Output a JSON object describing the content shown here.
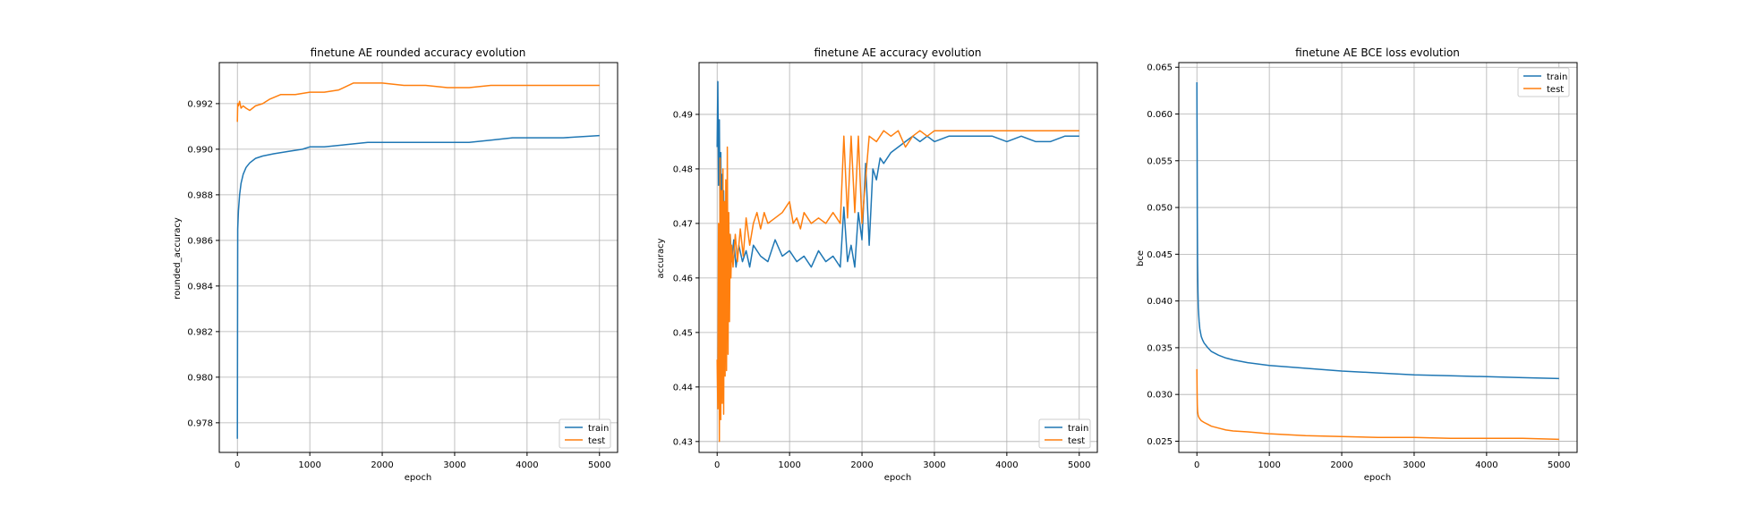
{
  "colors": {
    "train": "#1f77b4",
    "test": "#ff7f0e",
    "grid": "#b0b0b0",
    "axis": "#000000"
  },
  "chart_data": [
    {
      "type": "line",
      "title": "finetune AE rounded accuracy evolution",
      "xlabel": "epoch",
      "ylabel": "rounded_accuracy",
      "xlim": [
        -250,
        5250
      ],
      "ylim": [
        0.9767,
        0.9938
      ],
      "xticks": [
        0,
        1000,
        2000,
        3000,
        4000,
        5000
      ],
      "xtick_labels": [
        "0",
        "1000",
        "2000",
        "3000",
        "4000",
        "5000"
      ],
      "yticks": [
        0.978,
        0.98,
        0.982,
        0.984,
        0.986,
        0.988,
        0.99,
        0.992
      ],
      "ytick_labels": [
        "0.978",
        "0.980",
        "0.982",
        "0.984",
        "0.986",
        "0.988",
        "0.990",
        "0.992"
      ],
      "grid": true,
      "legend_position": "bottom-right",
      "legend": [
        "train",
        "test"
      ],
      "series": [
        {
          "name": "train",
          "color_key": "train",
          "x": [
            0,
            5,
            15,
            30,
            50,
            80,
            120,
            170,
            250,
            350,
            500,
            700,
            900,
            1000,
            1200,
            1500,
            1800,
            2000,
            2500,
            3000,
            3200,
            3500,
            3800,
            4000,
            4500,
            5000
          ],
          "y": [
            0.9773,
            0.9865,
            0.9873,
            0.988,
            0.9885,
            0.9889,
            0.9892,
            0.9894,
            0.9896,
            0.9897,
            0.9898,
            0.9899,
            0.99,
            0.9901,
            0.9901,
            0.9902,
            0.9903,
            0.9903,
            0.9903,
            0.9903,
            0.9903,
            0.9904,
            0.9905,
            0.9905,
            0.9905,
            0.9906
          ]
        },
        {
          "name": "test",
          "color_key": "test",
          "x": [
            0,
            5,
            15,
            30,
            50,
            80,
            120,
            170,
            250,
            350,
            450,
            600,
            800,
            1000,
            1200,
            1400,
            1600,
            1800,
            2000,
            2300,
            2600,
            2900,
            3200,
            3500,
            4000,
            4500,
            5000
          ],
          "y": [
            0.9912,
            0.992,
            0.9919,
            0.9921,
            0.9918,
            0.9919,
            0.9918,
            0.9917,
            0.9919,
            0.992,
            0.9922,
            0.9924,
            0.9924,
            0.9925,
            0.9925,
            0.9926,
            0.9929,
            0.9929,
            0.9929,
            0.9928,
            0.9928,
            0.9927,
            0.9927,
            0.9928,
            0.9928,
            0.9928,
            0.9928
          ]
        }
      ]
    },
    {
      "type": "line",
      "title": "finetune AE accuracy evolution",
      "xlabel": "epoch",
      "ylabel": "accuracy",
      "xlim": [
        -250,
        5250
      ],
      "ylim": [
        0.428,
        0.4995
      ],
      "xticks": [
        0,
        1000,
        2000,
        3000,
        4000,
        5000
      ],
      "xtick_labels": [
        "0",
        "1000",
        "2000",
        "3000",
        "4000",
        "5000"
      ],
      "yticks": [
        0.43,
        0.44,
        0.45,
        0.46,
        0.47,
        0.48,
        0.49
      ],
      "ytick_labels": [
        "0.43",
        "0.44",
        "0.45",
        "0.46",
        "0.47",
        "0.48",
        "0.49"
      ],
      "grid": true,
      "legend_position": "bottom-right",
      "legend": [
        "train",
        "test"
      ],
      "series": [
        {
          "name": "train",
          "color_key": "train",
          "x": [
            0,
            10,
            20,
            30,
            40,
            50,
            60,
            70,
            80,
            90,
            100,
            110,
            120,
            140,
            160,
            180,
            200,
            230,
            260,
            300,
            350,
            400,
            450,
            500,
            600,
            700,
            800,
            900,
            1000,
            1100,
            1200,
            1300,
            1400,
            1500,
            1600,
            1700,
            1750,
            1800,
            1850,
            1900,
            1950,
            2000,
            2050,
            2100,
            2150,
            2200,
            2250,
            2300,
            2400,
            2500,
            2600,
            2700,
            2800,
            2900,
            3000,
            3200,
            3400,
            3600,
            3800,
            4000,
            4200,
            4400,
            4600,
            4800,
            5000
          ],
          "y": [
            0.484,
            0.496,
            0.477,
            0.489,
            0.47,
            0.483,
            0.466,
            0.479,
            0.458,
            0.476,
            0.462,
            0.474,
            0.465,
            0.471,
            0.46,
            0.468,
            0.463,
            0.467,
            0.462,
            0.466,
            0.463,
            0.465,
            0.462,
            0.466,
            0.464,
            0.463,
            0.467,
            0.464,
            0.465,
            0.463,
            0.464,
            0.462,
            0.465,
            0.463,
            0.464,
            0.462,
            0.473,
            0.463,
            0.466,
            0.462,
            0.472,
            0.467,
            0.481,
            0.466,
            0.48,
            0.478,
            0.482,
            0.481,
            0.483,
            0.484,
            0.485,
            0.486,
            0.485,
            0.486,
            0.485,
            0.486,
            0.486,
            0.486,
            0.486,
            0.485,
            0.486,
            0.485,
            0.485,
            0.486,
            0.486
          ]
        },
        {
          "name": "test",
          "color_key": "test",
          "x": [
            0,
            10,
            20,
            30,
            40,
            50,
            60,
            70,
            80,
            90,
            100,
            110,
            120,
            130,
            140,
            150,
            160,
            170,
            180,
            190,
            200,
            220,
            250,
            280,
            320,
            360,
            400,
            450,
            500,
            550,
            600,
            650,
            700,
            800,
            900,
            1000,
            1050,
            1100,
            1150,
            1200,
            1300,
            1400,
            1500,
            1600,
            1700,
            1750,
            1800,
            1850,
            1900,
            1950,
            2000,
            2100,
            2200,
            2300,
            2400,
            2500,
            2600,
            2700,
            2800,
            2900,
            3000,
            3500,
            4000,
            4500,
            5000
          ],
          "y": [
            0.445,
            0.436,
            0.47,
            0.43,
            0.482,
            0.434,
            0.476,
            0.437,
            0.48,
            0.435,
            0.474,
            0.442,
            0.478,
            0.443,
            0.484,
            0.446,
            0.472,
            0.452,
            0.468,
            0.46,
            0.466,
            0.462,
            0.468,
            0.463,
            0.469,
            0.464,
            0.471,
            0.466,
            0.47,
            0.472,
            0.469,
            0.472,
            0.47,
            0.471,
            0.472,
            0.474,
            0.47,
            0.471,
            0.469,
            0.472,
            0.47,
            0.471,
            0.47,
            0.472,
            0.47,
            0.486,
            0.471,
            0.486,
            0.472,
            0.486,
            0.47,
            0.486,
            0.485,
            0.487,
            0.486,
            0.487,
            0.484,
            0.486,
            0.487,
            0.486,
            0.487,
            0.487,
            0.487,
            0.487,
            0.487
          ]
        }
      ]
    },
    {
      "type": "line",
      "title": "finetune AE BCE loss evolution",
      "xlabel": "epoch",
      "ylabel": "bce",
      "xlim": [
        -250,
        5250
      ],
      "ylim": [
        0.0238,
        0.0655
      ],
      "xticks": [
        0,
        1000,
        2000,
        3000,
        4000,
        5000
      ],
      "xtick_labels": [
        "0",
        "1000",
        "2000",
        "3000",
        "4000",
        "5000"
      ],
      "yticks": [
        0.025,
        0.03,
        0.035,
        0.04,
        0.045,
        0.05,
        0.055,
        0.06,
        0.065
      ],
      "ytick_labels": [
        "0.025",
        "0.030",
        "0.035",
        "0.040",
        "0.045",
        "0.050",
        "0.055",
        "0.060",
        "0.065"
      ],
      "grid": true,
      "legend_position": "top-right",
      "legend": [
        "train",
        "test"
      ],
      "series": [
        {
          "name": "train",
          "color_key": "train",
          "x": [
            0,
            3,
            6,
            10,
            15,
            20,
            30,
            40,
            60,
            80,
            100,
            150,
            200,
            300,
            400,
            500,
            700,
            1000,
            1500,
            2000,
            2500,
            3000,
            3500,
            4000,
            4500,
            5000
          ],
          "y": [
            0.0634,
            0.056,
            0.049,
            0.044,
            0.041,
            0.0393,
            0.0378,
            0.037,
            0.0362,
            0.0358,
            0.0355,
            0.035,
            0.0346,
            0.0342,
            0.0339,
            0.0337,
            0.0334,
            0.0331,
            0.0328,
            0.0325,
            0.0323,
            0.0321,
            0.032,
            0.0319,
            0.0318,
            0.0317
          ]
        },
        {
          "name": "test",
          "color_key": "test",
          "x": [
            0,
            3,
            6,
            10,
            15,
            20,
            30,
            40,
            60,
            80,
            100,
            150,
            200,
            300,
            400,
            500,
            700,
            1000,
            1500,
            2000,
            2500,
            3000,
            3500,
            4000,
            4500,
            5000
          ],
          "y": [
            0.0327,
            0.03,
            0.0288,
            0.0282,
            0.0279,
            0.0277,
            0.0275,
            0.0274,
            0.0272,
            0.0271,
            0.027,
            0.0268,
            0.0266,
            0.0264,
            0.0262,
            0.0261,
            0.026,
            0.0258,
            0.0256,
            0.0255,
            0.0254,
            0.0254,
            0.0253,
            0.0253,
            0.0253,
            0.0252
          ]
        }
      ]
    }
  ]
}
